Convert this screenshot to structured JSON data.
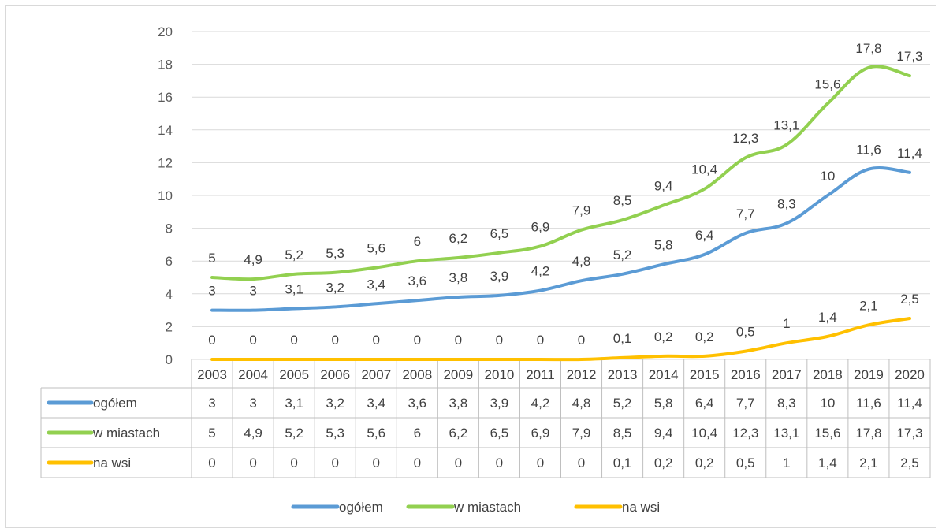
{
  "chart_data": {
    "type": "line",
    "categories": [
      "2003",
      "2004",
      "2005",
      "2006",
      "2007",
      "2008",
      "2009",
      "2010",
      "2011",
      "2012",
      "2013",
      "2014",
      "2015",
      "2016",
      "2017",
      "2018",
      "2019",
      "2020"
    ],
    "series": [
      {
        "name": "ogółem",
        "color": "#5b9bd5",
        "values": [
          3,
          3,
          3.1,
          3.2,
          3.4,
          3.6,
          3.8,
          3.9,
          4.2,
          4.8,
          5.2,
          5.8,
          6.4,
          7.7,
          8.3,
          10,
          11.6,
          11.4
        ]
      },
      {
        "name": "w miastach",
        "color": "#92d050",
        "values": [
          5,
          4.9,
          5.2,
          5.3,
          5.6,
          6,
          6.2,
          6.5,
          6.9,
          7.9,
          8.5,
          9.4,
          10.4,
          12.3,
          13.1,
          15.6,
          17.8,
          17.3
        ]
      },
      {
        "name": "na wsi",
        "color": "#ffc000",
        "values": [
          0,
          0,
          0,
          0,
          0,
          0,
          0,
          0,
          0,
          0,
          0.1,
          0.2,
          0.2,
          0.5,
          1,
          1.4,
          2.1,
          2.5
        ]
      }
    ],
    "ylim": [
      0,
      20
    ],
    "yticks": [
      0,
      2,
      4,
      6,
      8,
      10,
      12,
      14,
      16,
      18,
      20
    ],
    "grid": true,
    "data_table": true,
    "legend_position": "bottom"
  }
}
